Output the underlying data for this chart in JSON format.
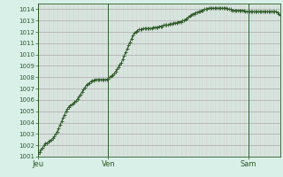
{
  "background_color": "#d8f0e8",
  "plot_bg_color": "#d8f0e8",
  "line_color": "#2d5a27",
  "marker_color": "#2d5a27",
  "grid_color_minor_v": "#d4b8b8",
  "grid_color_minor_h": "#d4b8b8",
  "grid_color_major": "#aaaaaa",
  "tick_label_color": "#2d5a27",
  "axis_color": "#2d5a27",
  "ylim": [
    1001,
    1014.5
  ],
  "yticks": [
    1001,
    1002,
    1003,
    1004,
    1005,
    1006,
    1007,
    1008,
    1009,
    1010,
    1011,
    1012,
    1013,
    1014
  ],
  "day_labels": [
    "Jeu",
    "Ven",
    "Sam"
  ],
  "day_positions": [
    0,
    48,
    144
  ],
  "values": [
    1001.2,
    1001.4,
    1001.6,
    1001.8,
    1002.0,
    1002.2,
    1002.2,
    1002.3,
    1002.4,
    1002.5,
    1002.6,
    1002.8,
    1003.0,
    1003.2,
    1003.5,
    1003.8,
    1004.1,
    1004.4,
    1004.7,
    1005.0,
    1005.2,
    1005.4,
    1005.5,
    1005.6,
    1005.7,
    1005.8,
    1005.9,
    1006.1,
    1006.3,
    1006.5,
    1006.7,
    1006.9,
    1007.1,
    1007.3,
    1007.4,
    1007.5,
    1007.6,
    1007.7,
    1007.7,
    1007.8,
    1007.8,
    1007.8,
    1007.8,
    1007.8,
    1007.8,
    1007.8,
    1007.8,
    1007.8,
    1007.9,
    1008.0,
    1008.1,
    1008.2,
    1008.3,
    1008.5,
    1008.7,
    1008.9,
    1009.1,
    1009.3,
    1009.6,
    1009.9,
    1010.2,
    1010.5,
    1010.8,
    1011.1,
    1011.4,
    1011.7,
    1011.9,
    1012.0,
    1012.1,
    1012.2,
    1012.2,
    1012.2,
    1012.3,
    1012.3,
    1012.3,
    1012.3,
    1012.3,
    1012.3,
    1012.3,
    1012.4,
    1012.4,
    1012.4,
    1012.4,
    1012.5,
    1012.5,
    1012.5,
    1012.6,
    1012.6,
    1012.6,
    1012.6,
    1012.7,
    1012.7,
    1012.7,
    1012.8,
    1012.8,
    1012.8,
    1012.9,
    1012.9,
    1012.9,
    1013.0,
    1013.0,
    1013.1,
    1013.2,
    1013.3,
    1013.4,
    1013.5,
    1013.6,
    1013.6,
    1013.7,
    1013.7,
    1013.8,
    1013.8,
    1013.9,
    1013.9,
    1014.0,
    1014.0,
    1014.0,
    1014.1,
    1014.1,
    1014.1,
    1014.1,
    1014.1,
    1014.1,
    1014.1,
    1014.1,
    1014.1,
    1014.1,
    1014.1,
    1014.1,
    1014.1,
    1014.0,
    1014.0,
    1014.0,
    1013.9,
    1013.9,
    1013.9,
    1013.9,
    1013.9,
    1013.9,
    1013.9,
    1013.9,
    1013.9,
    1013.8,
    1013.8,
    1013.8,
    1013.8,
    1013.8,
    1013.8,
    1013.8,
    1013.8,
    1013.8,
    1013.8,
    1013.8,
    1013.8,
    1013.8,
    1013.8,
    1013.8,
    1013.8,
    1013.8,
    1013.8,
    1013.8,
    1013.8,
    1013.8,
    1013.8,
    1013.7,
    1013.6,
    1013.5
  ]
}
